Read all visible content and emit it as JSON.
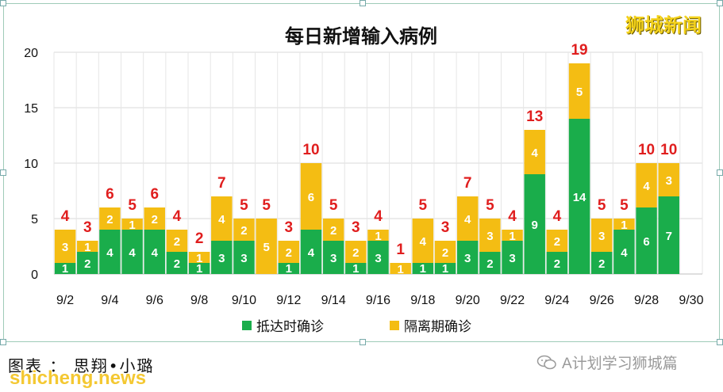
{
  "chart_data": {
    "type": "bar",
    "stacked": true,
    "title": "每日新增输入病例",
    "xlabel": "",
    "ylabel": "",
    "ylim": [
      0,
      20
    ],
    "yticks": [
      0,
      5,
      10,
      15,
      20
    ],
    "grid": true,
    "legend_position": "bottom",
    "tick_labels": [
      "9/2",
      "9/4",
      "9/6",
      "9/8",
      "9/10",
      "9/12",
      "9/14",
      "9/16",
      "9/18",
      "9/20",
      "9/22",
      "9/24",
      "9/26",
      "9/28",
      "9/30"
    ],
    "categories": [
      "9/2",
      "9/3",
      "9/4",
      "9/5",
      "9/6",
      "9/7",
      "9/8",
      "9/9",
      "9/10",
      "9/11",
      "9/12",
      "9/13",
      "9/14",
      "9/15",
      "9/16",
      "9/17",
      "9/18",
      "9/19",
      "9/20",
      "9/21",
      "9/22",
      "9/23",
      "9/24",
      "9/25",
      "9/26",
      "9/27",
      "9/28",
      "9/29",
      "9/30"
    ],
    "series": [
      {
        "name": "抵达时确诊",
        "color": "#1aad4b",
        "values": [
          1,
          2,
          4,
          4,
          4,
          2,
          1,
          3,
          3,
          0,
          1,
          4,
          3,
          1,
          3,
          0,
          1,
          1,
          3,
          2,
          3,
          9,
          2,
          14,
          2,
          4,
          6,
          7,
          0
        ]
      },
      {
        "name": "隔离期确诊",
        "color": "#f4bd13",
        "values": [
          3,
          1,
          2,
          1,
          2,
          2,
          1,
          4,
          2,
          5,
          2,
          6,
          2,
          2,
          1,
          1,
          4,
          2,
          4,
          3,
          1,
          4,
          2,
          5,
          3,
          1,
          4,
          3,
          0
        ]
      }
    ],
    "totals": [
      4,
      3,
      6,
      5,
      6,
      4,
      2,
      7,
      5,
      5,
      3,
      10,
      5,
      3,
      4,
      1,
      5,
      3,
      7,
      5,
      4,
      13,
      4,
      19,
      5,
      5,
      10,
      10,
      null
    ],
    "segment_labels": {
      "series0": [
        1,
        2,
        4,
        4,
        4,
        2,
        1,
        3,
        3,
        null,
        1,
        4,
        3,
        1,
        3,
        null,
        1,
        1,
        3,
        2,
        3,
        9,
        2,
        14,
        2,
        4,
        6,
        7,
        null
      ],
      "series1": [
        3,
        1,
        2,
        1,
        2,
        2,
        1,
        4,
        2,
        5,
        2,
        6,
        2,
        2,
        1,
        1,
        4,
        2,
        4,
        3,
        1,
        4,
        2,
        5,
        3,
        1,
        4,
        3,
        null
      ]
    },
    "total_label_color": "#e01e1e",
    "segment_label_color": "#ffffff"
  },
  "watermark": "狮城新闻",
  "credit": "图表 ： 思翔•小璐",
  "wechat_account": "A计划学习狮城篇",
  "site": "shicheng.news"
}
